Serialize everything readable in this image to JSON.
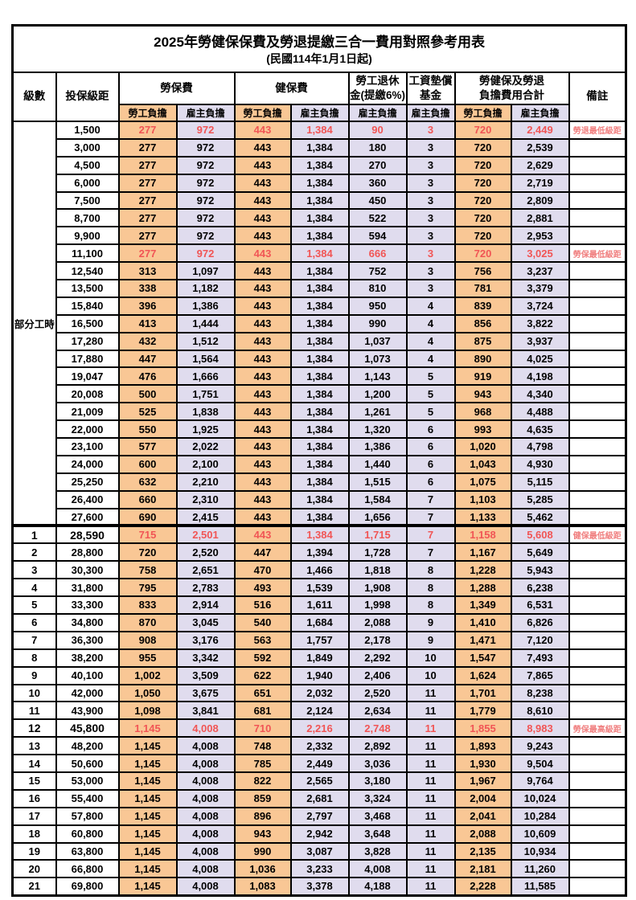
{
  "table": {
    "title": "2025年勞健保保費及勞退提繳三合一費用對照參考用表",
    "subtitle": "(民國114年1月1日起)",
    "columns": {
      "level": "級數",
      "bracket": "投保級距",
      "labor_insurance": "勞保費",
      "health_insurance": "健保費",
      "pension_line1": "勞工退休",
      "pension_line2": "金(提繳6%)",
      "wage_fund_line1": "工資墊償",
      "wage_fund_line2": "基金",
      "combined_line1": "勞健保及勞退",
      "combined_line2": "負擔費用合計",
      "note": "備註",
      "employee_share": "勞工負擔",
      "employer_share": "雇主負擔"
    },
    "colors": {
      "employee_bg": "#f9c795",
      "employer_bg": "#e0dcee",
      "highlight_text": "#f15555",
      "note_text": "#f07f7f",
      "border": "#000000"
    },
    "part_time_group": {
      "label": "部分工時",
      "row_span": 23
    },
    "rows": [
      {
        "level": null,
        "bracket": "1,500",
        "v": [
          "277",
          "972",
          "443",
          "1,384",
          "90",
          "3",
          "720",
          "2,449"
        ],
        "note": "勞退最低級距",
        "red": true,
        "bold": false,
        "thick_top": false
      },
      {
        "level": null,
        "bracket": "3,000",
        "v": [
          "277",
          "972",
          "443",
          "1,384",
          "180",
          "3",
          "720",
          "2,539"
        ],
        "note": "",
        "red": false,
        "bold": false,
        "thick_top": false
      },
      {
        "level": null,
        "bracket": "4,500",
        "v": [
          "277",
          "972",
          "443",
          "1,384",
          "270",
          "3",
          "720",
          "2,629"
        ],
        "note": "",
        "red": false,
        "bold": false,
        "thick_top": false
      },
      {
        "level": null,
        "bracket": "6,000",
        "v": [
          "277",
          "972",
          "443",
          "1,384",
          "360",
          "3",
          "720",
          "2,719"
        ],
        "note": "",
        "red": false,
        "bold": false,
        "thick_top": false
      },
      {
        "level": null,
        "bracket": "7,500",
        "v": [
          "277",
          "972",
          "443",
          "1,384",
          "450",
          "3",
          "720",
          "2,809"
        ],
        "note": "",
        "red": false,
        "bold": false,
        "thick_top": false
      },
      {
        "level": null,
        "bracket": "8,700",
        "v": [
          "277",
          "972",
          "443",
          "1,384",
          "522",
          "3",
          "720",
          "2,881"
        ],
        "note": "",
        "red": false,
        "bold": false,
        "thick_top": false
      },
      {
        "level": null,
        "bracket": "9,900",
        "v": [
          "277",
          "972",
          "443",
          "1,384",
          "594",
          "3",
          "720",
          "2,953"
        ],
        "note": "",
        "red": false,
        "bold": false,
        "thick_top": false
      },
      {
        "level": null,
        "bracket": "11,100",
        "v": [
          "277",
          "972",
          "443",
          "1,384",
          "666",
          "3",
          "720",
          "3,025"
        ],
        "note": "勞保最低級距",
        "red": true,
        "bold": false,
        "thick_top": false
      },
      {
        "level": null,
        "bracket": "12,540",
        "v": [
          "313",
          "1,097",
          "443",
          "1,384",
          "752",
          "3",
          "756",
          "3,237"
        ],
        "note": "",
        "red": false,
        "bold": false,
        "thick_top": false
      },
      {
        "level": null,
        "bracket": "13,500",
        "v": [
          "338",
          "1,182",
          "443",
          "1,384",
          "810",
          "3",
          "781",
          "3,379"
        ],
        "note": "",
        "red": false,
        "bold": false,
        "thick_top": false
      },
      {
        "level": null,
        "bracket": "15,840",
        "v": [
          "396",
          "1,386",
          "443",
          "1,384",
          "950",
          "4",
          "839",
          "3,724"
        ],
        "note": "",
        "red": false,
        "bold": false,
        "thick_top": false
      },
      {
        "level": null,
        "bracket": "16,500",
        "v": [
          "413",
          "1,444",
          "443",
          "1,384",
          "990",
          "4",
          "856",
          "3,822"
        ],
        "note": "",
        "red": false,
        "bold": false,
        "thick_top": false
      },
      {
        "level": null,
        "bracket": "17,280",
        "v": [
          "432",
          "1,512",
          "443",
          "1,384",
          "1,037",
          "4",
          "875",
          "3,937"
        ],
        "note": "",
        "red": false,
        "bold": false,
        "thick_top": false
      },
      {
        "level": null,
        "bracket": "17,880",
        "v": [
          "447",
          "1,564",
          "443",
          "1,384",
          "1,073",
          "4",
          "890",
          "4,025"
        ],
        "note": "",
        "red": false,
        "bold": false,
        "thick_top": false
      },
      {
        "level": null,
        "bracket": "19,047",
        "v": [
          "476",
          "1,666",
          "443",
          "1,384",
          "1,143",
          "5",
          "919",
          "4,198"
        ],
        "note": "",
        "red": false,
        "bold": false,
        "thick_top": false
      },
      {
        "level": null,
        "bracket": "20,008",
        "v": [
          "500",
          "1,751",
          "443",
          "1,384",
          "1,200",
          "5",
          "943",
          "4,340"
        ],
        "note": "",
        "red": false,
        "bold": false,
        "thick_top": false
      },
      {
        "level": null,
        "bracket": "21,009",
        "v": [
          "525",
          "1,838",
          "443",
          "1,384",
          "1,261",
          "5",
          "968",
          "4,488"
        ],
        "note": "",
        "red": false,
        "bold": false,
        "thick_top": false
      },
      {
        "level": null,
        "bracket": "22,000",
        "v": [
          "550",
          "1,925",
          "443",
          "1,384",
          "1,320",
          "6",
          "993",
          "4,635"
        ],
        "note": "",
        "red": false,
        "bold": false,
        "thick_top": false
      },
      {
        "level": null,
        "bracket": "23,100",
        "v": [
          "577",
          "2,022",
          "443",
          "1,384",
          "1,386",
          "6",
          "1,020",
          "4,798"
        ],
        "note": "",
        "red": false,
        "bold": false,
        "thick_top": false
      },
      {
        "level": null,
        "bracket": "24,000",
        "v": [
          "600",
          "2,100",
          "443",
          "1,384",
          "1,440",
          "6",
          "1,043",
          "4,930"
        ],
        "note": "",
        "red": false,
        "bold": false,
        "thick_top": false
      },
      {
        "level": null,
        "bracket": "25,250",
        "v": [
          "632",
          "2,210",
          "443",
          "1,384",
          "1,515",
          "6",
          "1,075",
          "5,115"
        ],
        "note": "",
        "red": false,
        "bold": false,
        "thick_top": false
      },
      {
        "level": null,
        "bracket": "26,400",
        "v": [
          "660",
          "2,310",
          "443",
          "1,384",
          "1,584",
          "7",
          "1,103",
          "5,285"
        ],
        "note": "",
        "red": false,
        "bold": false,
        "thick_top": false
      },
      {
        "level": null,
        "bracket": "27,600",
        "v": [
          "690",
          "2,415",
          "443",
          "1,384",
          "1,656",
          "7",
          "1,133",
          "5,462"
        ],
        "note": "",
        "red": false,
        "bold": false,
        "thick_top": false
      },
      {
        "level": "1",
        "bracket": "28,590",
        "v": [
          "715",
          "2,501",
          "443",
          "1,384",
          "1,715",
          "7",
          "1,158",
          "5,608"
        ],
        "note": "健保最低級距",
        "red": true,
        "bold": true,
        "thick_top": true
      },
      {
        "level": "2",
        "bracket": "28,800",
        "v": [
          "720",
          "2,520",
          "447",
          "1,394",
          "1,728",
          "7",
          "1,167",
          "5,649"
        ],
        "note": "",
        "red": false,
        "bold": false,
        "thick_top": false
      },
      {
        "level": "3",
        "bracket": "30,300",
        "v": [
          "758",
          "2,651",
          "470",
          "1,466",
          "1,818",
          "8",
          "1,228",
          "5,943"
        ],
        "note": "",
        "red": false,
        "bold": false,
        "thick_top": false
      },
      {
        "level": "4",
        "bracket": "31,800",
        "v": [
          "795",
          "2,783",
          "493",
          "1,539",
          "1,908",
          "8",
          "1,288",
          "6,238"
        ],
        "note": "",
        "red": false,
        "bold": false,
        "thick_top": false
      },
      {
        "level": "5",
        "bracket": "33,300",
        "v": [
          "833",
          "2,914",
          "516",
          "1,611",
          "1,998",
          "8",
          "1,349",
          "6,531"
        ],
        "note": "",
        "red": false,
        "bold": false,
        "thick_top": false
      },
      {
        "level": "6",
        "bracket": "34,800",
        "v": [
          "870",
          "3,045",
          "540",
          "1,684",
          "2,088",
          "9",
          "1,410",
          "6,826"
        ],
        "note": "",
        "red": false,
        "bold": false,
        "thick_top": false
      },
      {
        "level": "7",
        "bracket": "36,300",
        "v": [
          "908",
          "3,176",
          "563",
          "1,757",
          "2,178",
          "9",
          "1,471",
          "7,120"
        ],
        "note": "",
        "red": false,
        "bold": false,
        "thick_top": false
      },
      {
        "level": "8",
        "bracket": "38,200",
        "v": [
          "955",
          "3,342",
          "592",
          "1,849",
          "2,292",
          "10",
          "1,547",
          "7,493"
        ],
        "note": "",
        "red": false,
        "bold": false,
        "thick_top": false
      },
      {
        "level": "9",
        "bracket": "40,100",
        "v": [
          "1,002",
          "3,509",
          "622",
          "1,940",
          "2,406",
          "10",
          "1,624",
          "7,865"
        ],
        "note": "",
        "red": false,
        "bold": false,
        "thick_top": false
      },
      {
        "level": "10",
        "bracket": "42,000",
        "v": [
          "1,050",
          "3,675",
          "651",
          "2,032",
          "2,520",
          "11",
          "1,701",
          "8,238"
        ],
        "note": "",
        "red": false,
        "bold": false,
        "thick_top": false
      },
      {
        "level": "11",
        "bracket": "43,900",
        "v": [
          "1,098",
          "3,841",
          "681",
          "2,124",
          "2,634",
          "11",
          "1,779",
          "8,610"
        ],
        "note": "",
        "red": false,
        "bold": false,
        "thick_top": false
      },
      {
        "level": "12",
        "bracket": "45,800",
        "v": [
          "1,145",
          "4,008",
          "710",
          "2,216",
          "2,748",
          "11",
          "1,855",
          "8,983"
        ],
        "note": "勞保最高級距",
        "red": true,
        "bold": true,
        "thick_top": false
      },
      {
        "level": "13",
        "bracket": "48,200",
        "v": [
          "1,145",
          "4,008",
          "748",
          "2,332",
          "2,892",
          "11",
          "1,893",
          "9,243"
        ],
        "note": "",
        "red": false,
        "bold": false,
        "thick_top": false
      },
      {
        "level": "14",
        "bracket": "50,600",
        "v": [
          "1,145",
          "4,008",
          "785",
          "2,449",
          "3,036",
          "11",
          "1,930",
          "9,504"
        ],
        "note": "",
        "red": false,
        "bold": false,
        "thick_top": false
      },
      {
        "level": "15",
        "bracket": "53,000",
        "v": [
          "1,145",
          "4,008",
          "822",
          "2,565",
          "3,180",
          "11",
          "1,967",
          "9,764"
        ],
        "note": "",
        "red": false,
        "bold": false,
        "thick_top": false
      },
      {
        "level": "16",
        "bracket": "55,400",
        "v": [
          "1,145",
          "4,008",
          "859",
          "2,681",
          "3,324",
          "11",
          "2,004",
          "10,024"
        ],
        "note": "",
        "red": false,
        "bold": false,
        "thick_top": false
      },
      {
        "level": "17",
        "bracket": "57,800",
        "v": [
          "1,145",
          "4,008",
          "896",
          "2,797",
          "3,468",
          "11",
          "2,041",
          "10,284"
        ],
        "note": "",
        "red": false,
        "bold": false,
        "thick_top": false
      },
      {
        "level": "18",
        "bracket": "60,800",
        "v": [
          "1,145",
          "4,008",
          "943",
          "2,942",
          "3,648",
          "11",
          "2,088",
          "10,609"
        ],
        "note": "",
        "red": false,
        "bold": false,
        "thick_top": false
      },
      {
        "level": "19",
        "bracket": "63,800",
        "v": [
          "1,145",
          "4,008",
          "990",
          "3,087",
          "3,828",
          "11",
          "2,135",
          "10,934"
        ],
        "note": "",
        "red": false,
        "bold": false,
        "thick_top": false
      },
      {
        "level": "20",
        "bracket": "66,800",
        "v": [
          "1,145",
          "4,008",
          "1,036",
          "3,233",
          "4,008",
          "11",
          "2,181",
          "11,260"
        ],
        "note": "",
        "red": false,
        "bold": false,
        "thick_top": false
      },
      {
        "level": "21",
        "bracket": "69,800",
        "v": [
          "1,145",
          "4,008",
          "1,083",
          "3,378",
          "4,188",
          "11",
          "2,228",
          "11,585"
        ],
        "note": "",
        "red": false,
        "bold": false,
        "thick_top": false
      }
    ]
  }
}
